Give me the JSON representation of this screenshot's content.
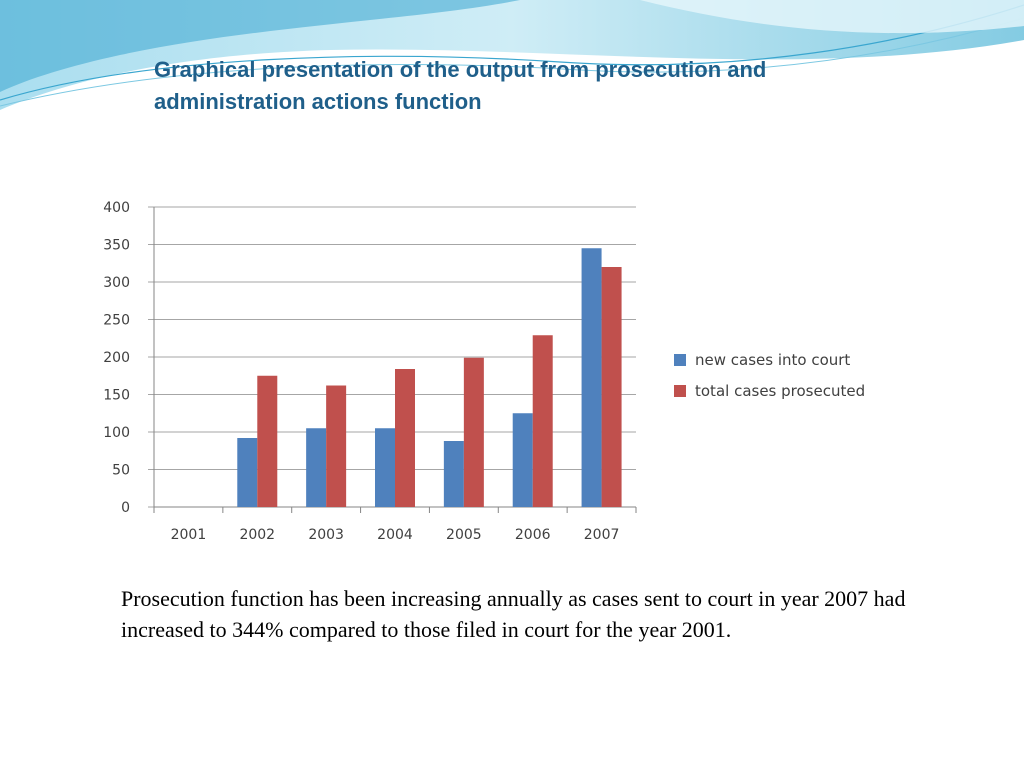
{
  "slide": {
    "title": "Graphical presentation of the output from prosecution and administration actions function",
    "caption": "Prosecution function has been increasing annually as cases sent to court in year 2007 had increased to 344% compared to those filed in court for the year 2001."
  },
  "colors": {
    "title": "#1f5f8a",
    "accent_wave": "#3aa6cf",
    "series_new": "#4f81bd",
    "series_total": "#c0504d"
  },
  "chart_data": {
    "type": "bar",
    "categories": [
      "2001",
      "2002",
      "2003",
      "2004",
      "2005",
      "2006",
      "2007"
    ],
    "series": [
      {
        "name": "new cases into court",
        "values": [
          0,
          92,
          105,
          105,
          88,
          125,
          345
        ]
      },
      {
        "name": "total cases prosecuted",
        "values": [
          0,
          175,
          162,
          184,
          199,
          229,
          320
        ]
      }
    ],
    "yticks": [
      "0",
      "50",
      "100",
      "150",
      "200",
      "250",
      "300",
      "350",
      "400"
    ],
    "ylim": [
      0,
      400
    ],
    "grid": true,
    "legend": "right",
    "title": "",
    "xlabel": "",
    "ylabel": ""
  }
}
